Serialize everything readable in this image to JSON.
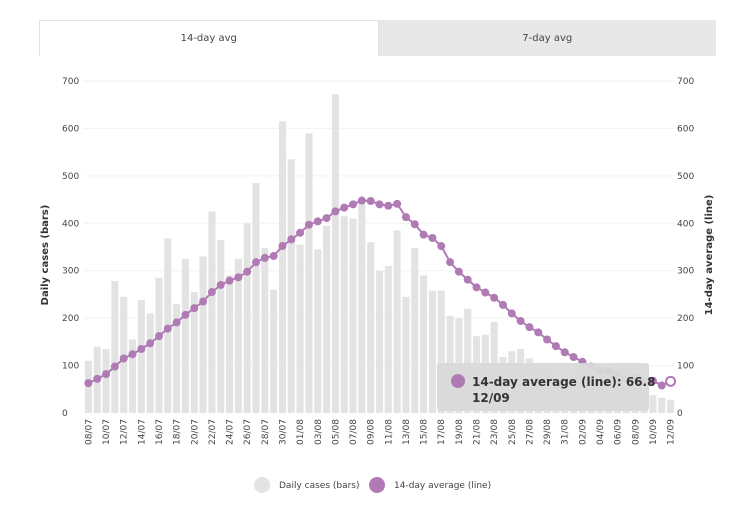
{
  "tabs": [
    {
      "label": "14-day avg",
      "active": true
    },
    {
      "label": "7-day avg",
      "active": false
    }
  ],
  "colors": {
    "bar": "#e3e3e3",
    "line": "#b07ab5",
    "tooltip_bg": "#d9d9d9"
  },
  "tooltip": {
    "series": "14-day average (line): 66.8",
    "date": "12/09"
  },
  "chart_data": {
    "type": "bar+line",
    "title": "",
    "xlabel": "",
    "ylabel_left": "Daily cases (bars)",
    "ylabel_right": "14-day average (line)",
    "ylim": [
      0,
      700
    ],
    "yticks": [
      0,
      100,
      200,
      300,
      400,
      500,
      600,
      700
    ],
    "x": [
      "08/07",
      "09/07",
      "10/07",
      "11/07",
      "12/07",
      "13/07",
      "14/07",
      "15/07",
      "16/07",
      "17/07",
      "18/07",
      "19/07",
      "20/07",
      "21/07",
      "22/07",
      "23/07",
      "24/07",
      "25/07",
      "26/07",
      "27/07",
      "28/07",
      "29/07",
      "30/07",
      "31/07",
      "01/08",
      "02/08",
      "03/08",
      "04/08",
      "05/08",
      "06/08",
      "07/08",
      "08/08",
      "09/08",
      "10/08",
      "11/08",
      "12/08",
      "13/08",
      "14/08",
      "15/08",
      "16/08",
      "17/08",
      "18/08",
      "19/08",
      "20/08",
      "21/08",
      "22/08",
      "23/08",
      "24/08",
      "25/08",
      "26/08",
      "27/08",
      "28/08",
      "29/08",
      "30/08",
      "31/08",
      "01/09",
      "02/09",
      "03/09",
      "04/09",
      "05/09",
      "06/09",
      "07/09",
      "08/09",
      "09/09",
      "10/09",
      "11/09",
      "12/09"
    ],
    "xtick_labels": [
      "08/07",
      "10/07",
      "12/07",
      "14/07",
      "16/07",
      "18/07",
      "20/07",
      "22/07",
      "24/07",
      "26/07",
      "28/07",
      "30/07",
      "01/08",
      "03/08",
      "05/08",
      "07/08",
      "09/08",
      "11/08",
      "13/08",
      "15/08",
      "17/08",
      "19/08",
      "21/08",
      "23/08",
      "25/08",
      "27/08",
      "29/08",
      "31/08",
      "02/09",
      "04/09",
      "06/09",
      "08/09",
      "10/09",
      "12/09"
    ],
    "series": [
      {
        "name": "Daily cases (bars)",
        "type": "bar",
        "values": [
          110,
          140,
          135,
          278,
          245,
          155,
          238,
          210,
          285,
          368,
          230,
          325,
          255,
          330,
          425,
          365,
          290,
          325,
          400,
          485,
          348,
          260,
          615,
          535,
          355,
          590,
          345,
          395,
          672,
          415,
          410,
          442,
          360,
          300,
          310,
          385,
          245,
          348,
          290,
          258,
          258,
          205,
          200,
          220,
          162,
          165,
          192,
          118,
          130,
          135,
          115,
          85,
          100,
          70,
          65,
          78,
          95,
          85,
          80,
          55,
          48,
          42,
          40,
          45,
          38,
          32,
          28
        ]
      },
      {
        "name": "14-day average (line)",
        "type": "line",
        "values": [
          63,
          72,
          82,
          98,
          115,
          124,
          135,
          147,
          162,
          178,
          191,
          207,
          221,
          235,
          255,
          270,
          279,
          286,
          298,
          318,
          327,
          331,
          352,
          366,
          380,
          397,
          404,
          411,
          425,
          433,
          440,
          448,
          447,
          440,
          437,
          441,
          413,
          398,
          376,
          369,
          352,
          318,
          298,
          281,
          265,
          254,
          243,
          228,
          210,
          194,
          181,
          170,
          155,
          141,
          128,
          118,
          108,
          98,
          89,
          88,
          80,
          72,
          76,
          65,
          68,
          58,
          66.8
        ]
      }
    ],
    "legend": [
      "Daily cases (bars)",
      "14-day average (line)"
    ],
    "legend_position": "bottom-center"
  }
}
